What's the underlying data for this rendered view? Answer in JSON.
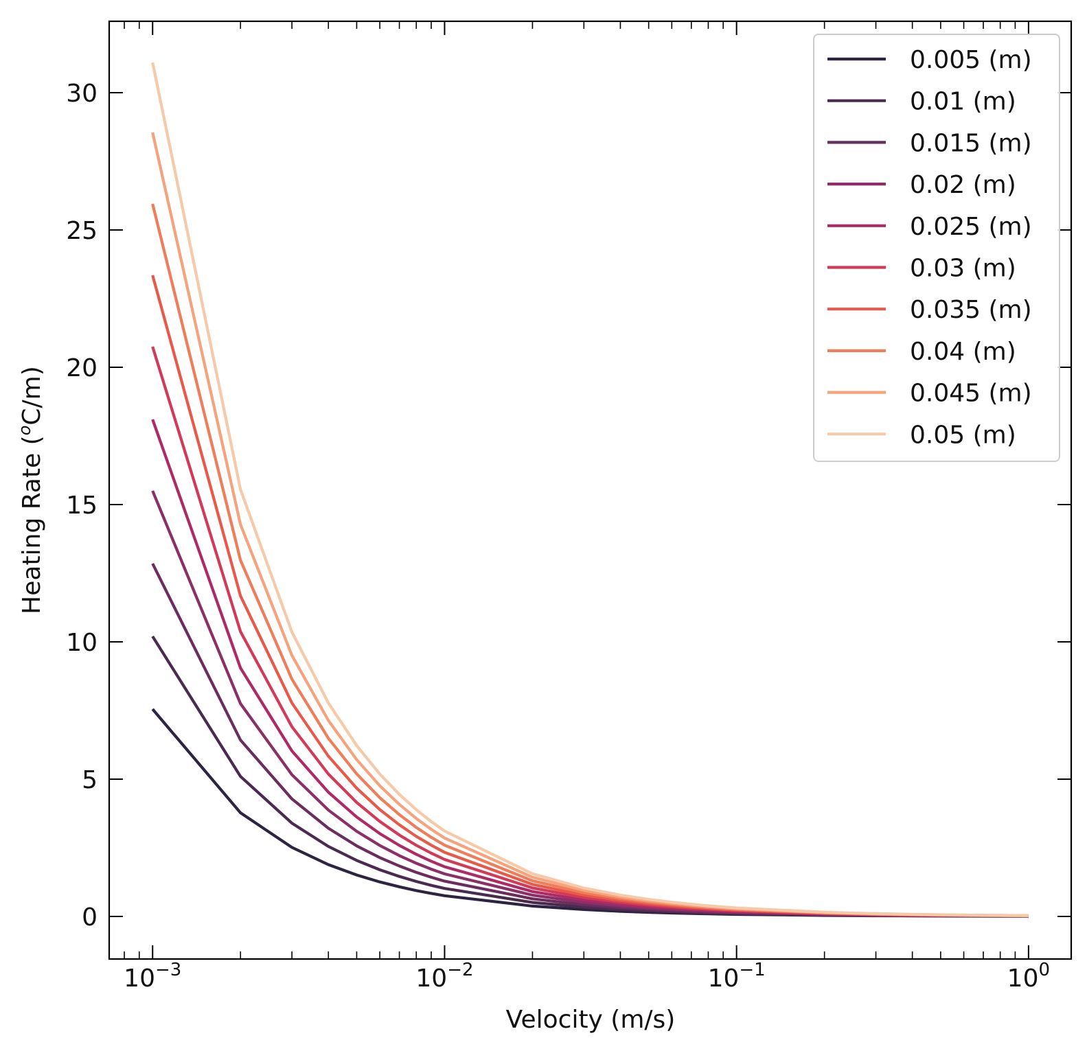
{
  "chart_data": {
    "type": "line",
    "xscale": "log",
    "xlabel": "Velocity (m/s)",
    "ylabel": "Heating Rate (oC/m)",
    "ylabel_parts": {
      "pre": "Heating Rate (",
      "sup": "o",
      "post": "C/m)"
    },
    "xlim": [
      0.00071,
      1.4
    ],
    "ylim": [
      -1.55,
      32.6
    ],
    "x_ticks": [
      {
        "value": 0.001,
        "base": "10",
        "exp": "−3"
      },
      {
        "value": 0.01,
        "base": "10",
        "exp": "−2"
      },
      {
        "value": 0.1,
        "base": "10",
        "exp": "−1"
      },
      {
        "value": 1,
        "base": "10",
        "exp": "0"
      }
    ],
    "y_ticks": [
      {
        "value": 0,
        "label": "0"
      },
      {
        "value": 5,
        "label": "5"
      },
      {
        "value": 10,
        "label": "10"
      },
      {
        "value": 15,
        "label": "15"
      },
      {
        "value": 20,
        "label": "20"
      },
      {
        "value": 25,
        "label": "25"
      },
      {
        "value": 30,
        "label": "30"
      }
    ],
    "grid": false,
    "legend_position": "top-right",
    "x": [
      0.001,
      0.002,
      0.003,
      0.004,
      0.005,
      0.006,
      0.007,
      0.008,
      0.009,
      0.01,
      0.02,
      0.03,
      0.04,
      0.05,
      0.06,
      0.07,
      0.08,
      0.09,
      0.1,
      0.2,
      0.3,
      0.4,
      0.5,
      0.6,
      0.7,
      0.8,
      0.9,
      1.0
    ],
    "base_curve": [
      1,
      0.5,
      0.333,
      0.25,
      0.2,
      0.1667,
      0.1429,
      0.125,
      0.1111,
      0.1,
      0.05,
      0.0333,
      0.025,
      0.02,
      0.0167,
      0.0143,
      0.0125,
      0.0111,
      0.01,
      0.005,
      0.0033,
      0.0025,
      0.002,
      0.0017,
      0.0014,
      0.0013,
      0.0011,
      0.001
    ],
    "series": [
      {
        "name": "0.005 (m)",
        "y_at_x0": 7.55,
        "color": "#2e2340"
      },
      {
        "name": "0.01 (m)",
        "y_at_x0": 10.2,
        "color": "#4a2b4f"
      },
      {
        "name": "0.015 (m)",
        "y_at_x0": 12.85,
        "color": "#6a2d5e"
      },
      {
        "name": "0.02 (m)",
        "y_at_x0": 15.5,
        "color": "#8b2f67"
      },
      {
        "name": "0.025 (m)",
        "y_at_x0": 18.1,
        "color": "#ad2a66"
      },
      {
        "name": "0.03 (m)",
        "y_at_x0": 20.75,
        "color": "#d23a58"
      },
      {
        "name": "0.035 (m)",
        "y_at_x0": 23.35,
        "color": "#e8594a"
      },
      {
        "name": "0.04 (m)",
        "y_at_x0": 25.95,
        "color": "#f07d59"
      },
      {
        "name": "0.045 (m)",
        "y_at_x0": 28.55,
        "color": "#f5a37d"
      },
      {
        "name": "0.05 (m)",
        "y_at_x0": 31.1,
        "color": "#f6c9a8"
      }
    ]
  }
}
